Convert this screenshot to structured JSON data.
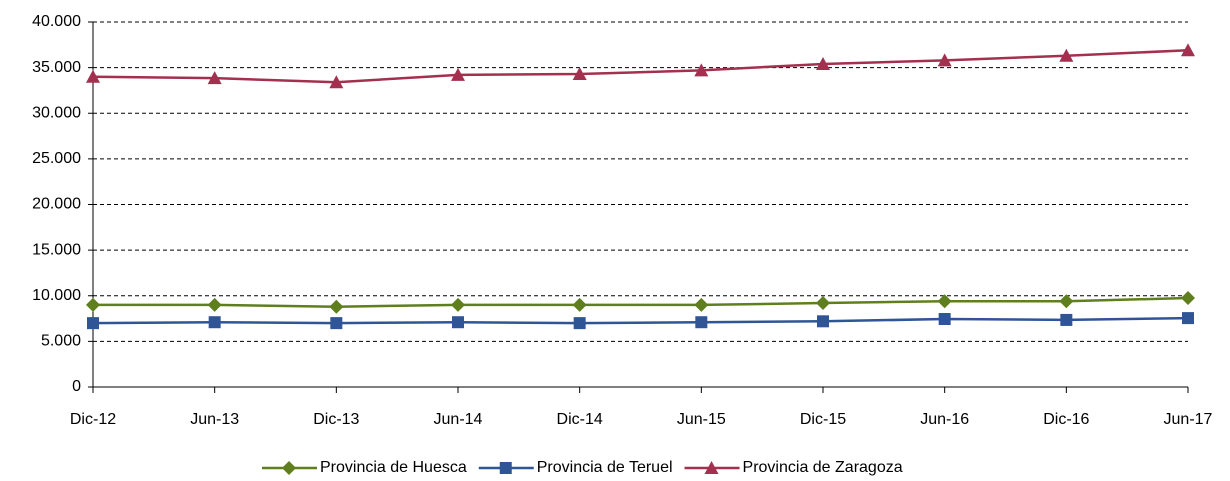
{
  "chart_data": {
    "type": "line",
    "categories": [
      "Dic-12",
      "Jun-13",
      "Dic-13",
      "Jun-14",
      "Dic-14",
      "Jun-15",
      "Dic-15",
      "Jun-16",
      "Dic-16",
      "Jun-17"
    ],
    "series": [
      {
        "name": "Provincia de Huesca",
        "color": "#5f7f1f",
        "marker": "diamond",
        "values": [
          9000,
          9000,
          8800,
          9000,
          9000,
          9000,
          9200,
          9400,
          9400,
          9750
        ]
      },
      {
        "name": "Provincia de Teruel",
        "color": "#2f5597",
        "marker": "square",
        "values": [
          7000,
          7100,
          7000,
          7100,
          7000,
          7100,
          7200,
          7450,
          7350,
          7550
        ]
      },
      {
        "name": "Provincia de Zaragoza",
        "color": "#a3304f",
        "marker": "triangle",
        "values": [
          34000,
          33850,
          33400,
          34200,
          34300,
          34700,
          35400,
          35800,
          36300,
          36900
        ]
      }
    ],
    "ylim": [
      0,
      40000
    ],
    "yticks": [
      0,
      {
        "value": 5000,
        "label": "5.000"
      },
      {
        "value": 10000,
        "label": "10.000"
      },
      {
        "value": 15000,
        "label": "15.000"
      },
      {
        "value": 20000,
        "label": "20.000"
      },
      {
        "value": 25000,
        "label": "25.000"
      },
      {
        "value": 30000,
        "label": "30.000"
      },
      {
        "value": 35000,
        "label": "35.000"
      },
      {
        "value": 40000,
        "label": "40.000"
      }
    ],
    "grid": true,
    "legend": "bottom"
  }
}
